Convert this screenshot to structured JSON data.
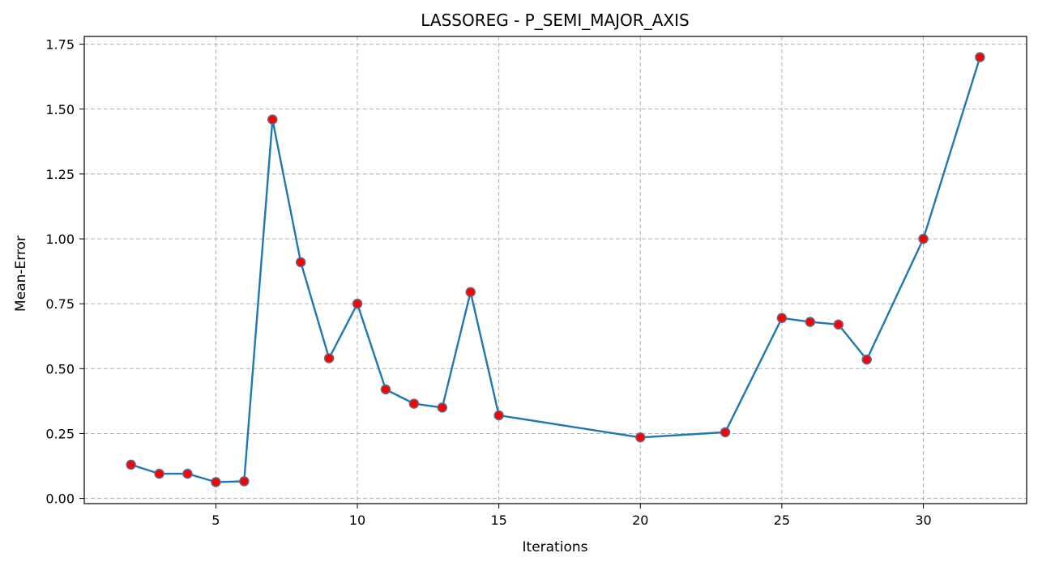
{
  "chart_data": {
    "type": "line",
    "title": "LASSOREG - P_SEMI_MAJOR_AXIS",
    "xlabel": "Iterations",
    "ylabel": "Mean-Error",
    "xlim": [
      0.35,
      33.65
    ],
    "ylim": [
      -0.02,
      1.78
    ],
    "xticks": [
      5,
      10,
      15,
      20,
      25,
      30
    ],
    "xtick_labels": [
      "5",
      "10",
      "15",
      "20",
      "25",
      "30"
    ],
    "yticks": [
      0.0,
      0.25,
      0.5,
      0.75,
      1.0,
      1.25,
      1.5,
      1.75
    ],
    "ytick_labels": [
      "0.00",
      "0.25",
      "0.50",
      "0.75",
      "1.00",
      "1.25",
      "1.50",
      "1.75"
    ],
    "grid": true,
    "grid_style": "dashed",
    "line_color": "#1f77b4",
    "marker_face_color": "#ff0000",
    "marker_edge_color": "#5a6f8f",
    "series": [
      {
        "x": [
          2,
          3,
          4,
          5,
          6,
          7,
          8,
          9,
          10,
          11,
          12,
          13,
          14,
          15,
          20,
          23,
          25,
          26,
          27,
          28,
          30,
          32
        ],
        "y": [
          0.13,
          0.095,
          0.095,
          0.063,
          0.066,
          1.46,
          0.91,
          0.54,
          0.75,
          0.42,
          0.365,
          0.35,
          0.795,
          0.32,
          0.235,
          0.255,
          0.695,
          0.68,
          0.67,
          0.535,
          1.0,
          1.7
        ]
      }
    ]
  }
}
